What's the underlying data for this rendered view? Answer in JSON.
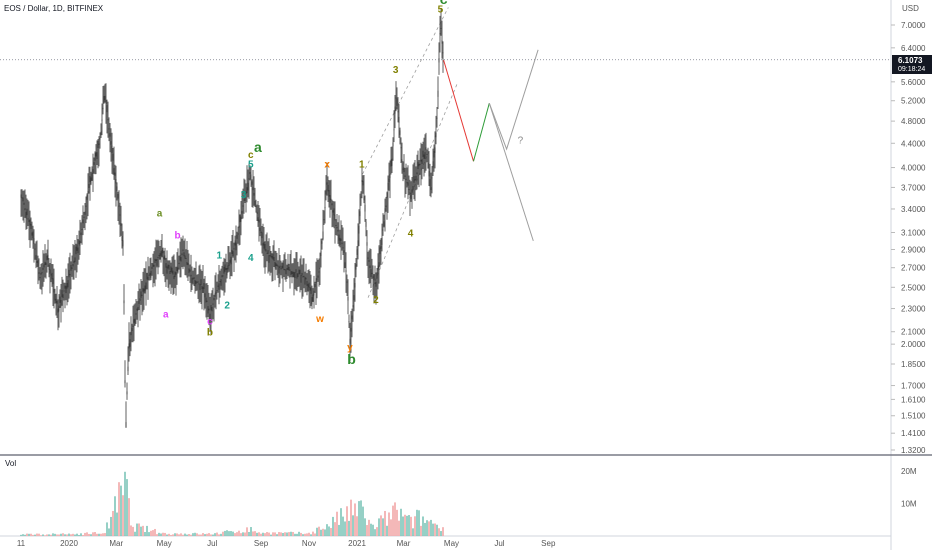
{
  "chart_data": {
    "type": "candlestick",
    "title": "EOS / Dollar, 1D, BITFINEX",
    "currency": "USD",
    "current_price": "6.1073",
    "countdown": "09:18:24",
    "ylim": [
      1.3,
      7.6
    ],
    "y_scale": "log",
    "price_ticks": [
      "7.0000",
      "6.4000",
      "5.6000",
      "5.2000",
      "4.8000",
      "4.4000",
      "4.0000",
      "3.7000",
      "3.4000",
      "3.1000",
      "2.9000",
      "2.7000",
      "2.5000",
      "2.3000",
      "2.1000",
      "2.0000",
      "1.8500",
      "1.7000",
      "1.6100",
      "1.5100",
      "1.4100",
      "1.3200"
    ],
    "price_tick_values": [
      7.0,
      6.4,
      5.6,
      5.2,
      4.8,
      4.4,
      4.0,
      3.7,
      3.4,
      3.1,
      2.9,
      2.7,
      2.5,
      2.3,
      2.1,
      2.0,
      1.85,
      1.7,
      1.61,
      1.51,
      1.41,
      1.32
    ],
    "time_labels": [
      "11",
      "2020",
      "Mar",
      "May",
      "Jul",
      "Sep",
      "Nov",
      "2021",
      "Mar",
      "May",
      "Jul",
      "Sep"
    ],
    "time_label_dates": [
      "2019-11-01",
      "2020-01-01",
      "2020-03-01",
      "2020-05-01",
      "2020-07-01",
      "2020-09-01",
      "2020-11-01",
      "2021-01-01",
      "2021-03-01",
      "2021-05-01",
      "2021-07-01",
      "2021-09-01"
    ],
    "volume_label": "Vol",
    "volume_ticks": [
      "20M",
      "10M"
    ],
    "volume_tick_values": [
      20,
      10
    ],
    "volume_unit": "millions",
    "price_path": [
      [
        "2019-11-01",
        3.6
      ],
      [
        "2019-11-15",
        3.1
      ],
      [
        "2019-11-25",
        2.6
      ],
      [
        "2019-12-05",
        2.8
      ],
      [
        "2019-12-18",
        2.3
      ],
      [
        "2020-01-01",
        2.6
      ],
      [
        "2020-01-15",
        3.0
      ],
      [
        "2020-01-28",
        3.8
      ],
      [
        "2020-02-10",
        4.5
      ],
      [
        "2020-02-15",
        5.4
      ],
      [
        "2020-02-25",
        4.2
      ],
      [
        "2020-03-05",
        3.4
      ],
      [
        "2020-03-10",
        2.9
      ],
      [
        "2020-03-13",
        1.42
      ],
      [
        "2020-03-17",
        2.0
      ],
      [
        "2020-03-28",
        2.3
      ],
      [
        "2020-04-10",
        2.6
      ],
      [
        "2020-04-28",
        2.9
      ],
      [
        "2020-05-05",
        2.7
      ],
      [
        "2020-05-15",
        2.6
      ],
      [
        "2020-05-25",
        2.9
      ],
      [
        "2020-06-05",
        2.6
      ],
      [
        "2020-06-20",
        2.5
      ],
      [
        "2020-06-28",
        2.25
      ],
      [
        "2020-07-10",
        2.55
      ],
      [
        "2020-07-20",
        2.7
      ],
      [
        "2020-08-01",
        3.0
      ],
      [
        "2020-08-10",
        3.5
      ],
      [
        "2020-08-18",
        3.9
      ],
      [
        "2020-08-28",
        3.3
      ],
      [
        "2020-09-05",
        2.9
      ],
      [
        "2020-09-25",
        2.7
      ],
      [
        "2020-10-15",
        2.65
      ],
      [
        "2020-10-28",
        2.6
      ],
      [
        "2020-11-05",
        2.4
      ],
      [
        "2020-11-15",
        2.7
      ],
      [
        "2020-11-24",
        3.8
      ],
      [
        "2020-12-05",
        3.2
      ],
      [
        "2020-12-15",
        2.9
      ],
      [
        "2020-12-20",
        2.5
      ],
      [
        "2020-12-23",
        2.0
      ],
      [
        "2020-12-30",
        2.6
      ],
      [
        "2021-01-08",
        3.9
      ],
      [
        "2021-01-15",
        2.8
      ],
      [
        "2021-01-25",
        2.5
      ],
      [
        "2021-02-05",
        3.3
      ],
      [
        "2021-02-15",
        4.2
      ],
      [
        "2021-02-20",
        5.4
      ],
      [
        "2021-02-28",
        4.0
      ],
      [
        "2021-03-10",
        3.6
      ],
      [
        "2021-03-20",
        4.0
      ],
      [
        "2021-03-30",
        4.3
      ],
      [
        "2021-04-05",
        3.7
      ],
      [
        "2021-04-12",
        4.6
      ],
      [
        "2021-04-17",
        7.1
      ],
      [
        "2021-04-21",
        6.1
      ]
    ],
    "volume_series": [
      [
        "2019-11-01",
        0.6
      ],
      [
        "2020-01-01",
        0.7
      ],
      [
        "2020-02-15",
        1.2
      ],
      [
        "2020-03-13",
        19.5
      ],
      [
        "2020-03-20",
        4.0
      ],
      [
        "2020-05-01",
        0.9
      ],
      [
        "2020-07-01",
        0.8
      ],
      [
        "2020-08-18",
        2.5
      ],
      [
        "2020-09-01",
        1.2
      ],
      [
        "2020-11-01",
        1.0
      ],
      [
        "2020-11-24",
        4.0
      ],
      [
        "2020-12-23",
        9.0
      ],
      [
        "2021-01-08",
        10.0
      ],
      [
        "2021-01-20",
        3.0
      ],
      [
        "2021-02-20",
        9.5
      ],
      [
        "2021-03-10",
        5.0
      ],
      [
        "2021-03-20",
        7.0
      ],
      [
        "2021-04-17",
        4.0
      ],
      [
        "2021-04-21",
        2.0
      ]
    ],
    "projection": [
      {
        "color": "#e53935",
        "points": [
          [
            "2021-04-21",
            6.1
          ],
          [
            "2021-05-29",
            4.1
          ]
        ]
      },
      {
        "color": "#2e9c38",
        "points": [
          [
            "2021-05-29",
            4.1
          ],
          [
            "2021-06-18",
            5.15
          ]
        ]
      },
      {
        "color": "#9e9e9e",
        "points": [
          [
            "2021-06-18",
            5.15
          ],
          [
            "2021-07-10",
            4.3
          ],
          [
            "2021-08-19",
            6.35
          ]
        ]
      },
      {
        "color": "#9e9e9e",
        "points": [
          [
            "2021-06-18",
            5.15
          ],
          [
            "2021-08-13",
            3.0
          ]
        ]
      }
    ],
    "channel_lines": [
      [
        [
          "2021-01-08",
          3.9
        ],
        [
          "2021-04-27",
          7.5
        ]
      ],
      [
        [
          "2021-01-15",
          2.4
        ],
        [
          "2021-05-08",
          5.55
        ]
      ]
    ],
    "question_mark": {
      "text": "?",
      "date": "2021-07-24",
      "price": 4.4
    },
    "wave_labels": [
      {
        "text": "a",
        "date": "2020-04-25",
        "price": 3.3,
        "color": "#6b8e23",
        "size": "small"
      },
      {
        "text": "a",
        "date": "2020-05-03",
        "price": 2.22,
        "color": "#e040fb",
        "size": "small"
      },
      {
        "text": "b",
        "date": "2020-05-18",
        "price": 3.03,
        "color": "#e040fb",
        "size": "small"
      },
      {
        "text": "c",
        "date": "2020-06-28",
        "price": 2.16,
        "color": "#e040fb",
        "size": "small"
      },
      {
        "text": "b",
        "date": "2020-06-28",
        "price": 2.07,
        "color": "#808000",
        "size": "small"
      },
      {
        "text": "1",
        "date": "2020-07-10",
        "price": 2.8,
        "color": "#1aa08c",
        "size": "small"
      },
      {
        "text": "2",
        "date": "2020-07-20",
        "price": 2.3,
        "color": "#1aa08c",
        "size": "small"
      },
      {
        "text": "3",
        "date": "2020-08-10",
        "price": 3.55,
        "color": "#1aa08c",
        "size": "small"
      },
      {
        "text": "4",
        "date": "2020-08-19",
        "price": 2.77,
        "color": "#1aa08c",
        "size": "small"
      },
      {
        "text": "5",
        "date": "2020-08-19",
        "price": 4.0,
        "color": "#1aa08c",
        "size": "small"
      },
      {
        "text": "c",
        "date": "2020-08-19",
        "price": 4.15,
        "color": "#808000",
        "size": "small"
      },
      {
        "text": "a",
        "date": "2020-08-28",
        "price": 4.25,
        "color": "#2e8b2e",
        "size": "big"
      },
      {
        "text": "w",
        "date": "2020-11-15",
        "price": 2.18,
        "color": "#f57c00",
        "size": "small"
      },
      {
        "text": "x",
        "date": "2020-11-24",
        "price": 4.0,
        "color": "#f57c00",
        "size": "small"
      },
      {
        "text": "y",
        "date": "2020-12-23",
        "price": 1.95,
        "color": "#f57c00",
        "size": "small"
      },
      {
        "text": "b",
        "date": "2020-12-25",
        "price": 1.85,
        "color": "#2e8b2e",
        "size": "big"
      },
      {
        "text": "1",
        "date": "2021-01-07",
        "price": 4.0,
        "color": "#808000",
        "size": "small"
      },
      {
        "text": "2",
        "date": "2021-01-25",
        "price": 2.35,
        "color": "#808000",
        "size": "small"
      },
      {
        "text": "3",
        "date": "2021-02-19",
        "price": 5.8,
        "color": "#808000",
        "size": "small"
      },
      {
        "text": "4",
        "date": "2021-03-10",
        "price": 3.05,
        "color": "#808000",
        "size": "small"
      },
      {
        "text": "5",
        "date": "2021-04-17",
        "price": 7.35,
        "color": "#808000",
        "size": "small"
      },
      {
        "text": "c",
        "date": "2021-04-21",
        "price": 7.6,
        "color": "#2e8b2e",
        "size": "big"
      }
    ]
  }
}
